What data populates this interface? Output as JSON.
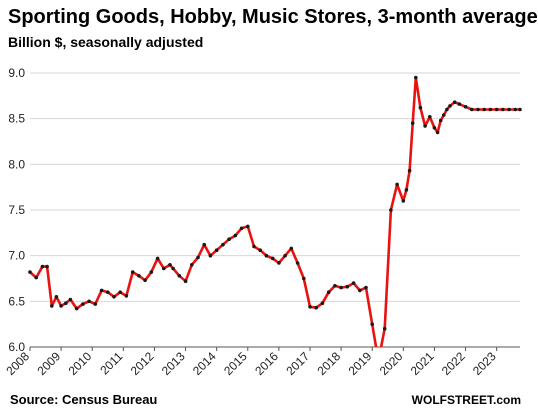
{
  "header": {
    "title": "Sporting Goods, Hobby, Music Stores, 3-month average",
    "subtitle": "Billion $, seasonally adjusted"
  },
  "footer": {
    "source": "Source: Census Bureau",
    "brand": "WOLFSTREET.com"
  },
  "colors": {
    "line": "#e8130f",
    "marker": "#1a1a1a",
    "grid": "#d6d6d6",
    "axis": "#555555"
  },
  "chart_data": {
    "type": "line",
    "title": "Sporting Goods, Hobby, Music Stores, 3-month average",
    "subtitle": "Billion $, seasonally adjusted",
    "ylim": [
      6.0,
      9.0
    ],
    "yticks": [
      "6.0",
      "6.5",
      "7.0",
      "7.5",
      "8.0",
      "8.5",
      "9.0"
    ],
    "xlim": [
      2008.0,
      2023.75
    ],
    "xticks": [
      "2008",
      "2009",
      "2010",
      "2011",
      "2012",
      "2013",
      "2014",
      "2015",
      "2016",
      "2017",
      "2018",
      "2019",
      "2020",
      "2021",
      "2022",
      "2023"
    ],
    "grid": "horizontal",
    "series": [
      {
        "x": [
          2008.0,
          2008.2,
          2008.4,
          2008.55,
          2008.7,
          2008.85,
          2009.0,
          2009.15,
          2009.3,
          2009.5,
          2009.7,
          2009.9,
          2010.1,
          2010.3,
          2010.5,
          2010.7,
          2010.9,
          2011.1,
          2011.3,
          2011.5,
          2011.7,
          2011.9,
          2012.1,
          2012.3,
          2012.5,
          2012.6,
          2012.8,
          2013.0,
          2013.2,
          2013.4,
          2013.6,
          2013.8,
          2014.0,
          2014.2,
          2014.4,
          2014.6,
          2014.8,
          2015.0,
          2015.2,
          2015.4,
          2015.6,
          2015.8,
          2016.0,
          2016.2,
          2016.4,
          2016.6,
          2016.8,
          2017.0,
          2017.2,
          2017.4,
          2017.6,
          2017.8,
          2018.0,
          2018.2,
          2018.4,
          2018.6,
          2018.8,
          2019.0,
          2019.2,
          2019.4,
          2019.6,
          2019.8,
          2020.0,
          2020.1,
          2020.2,
          2020.3,
          2020.4,
          2020.55,
          2020.7,
          2020.85,
          2021.0,
          2021.1,
          2021.2,
          2021.3,
          2021.4,
          2021.5,
          2021.65,
          2021.8,
          2022.0,
          2022.2,
          2022.4,
          2022.6,
          2022.8,
          2023.0,
          2023.2,
          2023.4,
          2023.6,
          2023.75
        ],
        "values": [
          6.82,
          6.76,
          6.88,
          6.88,
          6.45,
          6.55,
          6.45,
          6.48,
          6.52,
          6.42,
          6.47,
          6.5,
          6.47,
          6.62,
          6.6,
          6.55,
          6.6,
          6.56,
          6.82,
          6.78,
          6.73,
          6.82,
          6.97,
          6.86,
          6.9,
          6.86,
          6.78,
          6.72,
          6.9,
          6.98,
          7.12,
          7.0,
          7.06,
          7.12,
          7.18,
          7.22,
          7.3,
          7.32,
          7.1,
          7.06,
          7.0,
          6.97,
          6.92,
          7.0,
          7.08,
          6.92,
          6.75,
          6.44,
          6.43,
          6.48,
          6.6,
          6.67,
          6.65,
          6.66,
          6.7,
          6.62,
          6.65,
          6.25,
          5.85,
          6.2,
          7.5,
          7.78,
          7.6,
          7.72,
          7.93,
          8.45,
          8.95,
          8.62,
          8.42,
          8.52,
          8.4,
          8.35,
          8.48,
          8.54,
          8.6,
          8.64,
          8.68,
          8.66,
          8.63,
          8.6,
          8.6,
          8.6,
          8.6,
          8.6,
          8.6,
          8.6,
          8.6,
          8.6
        ]
      }
    ]
  }
}
